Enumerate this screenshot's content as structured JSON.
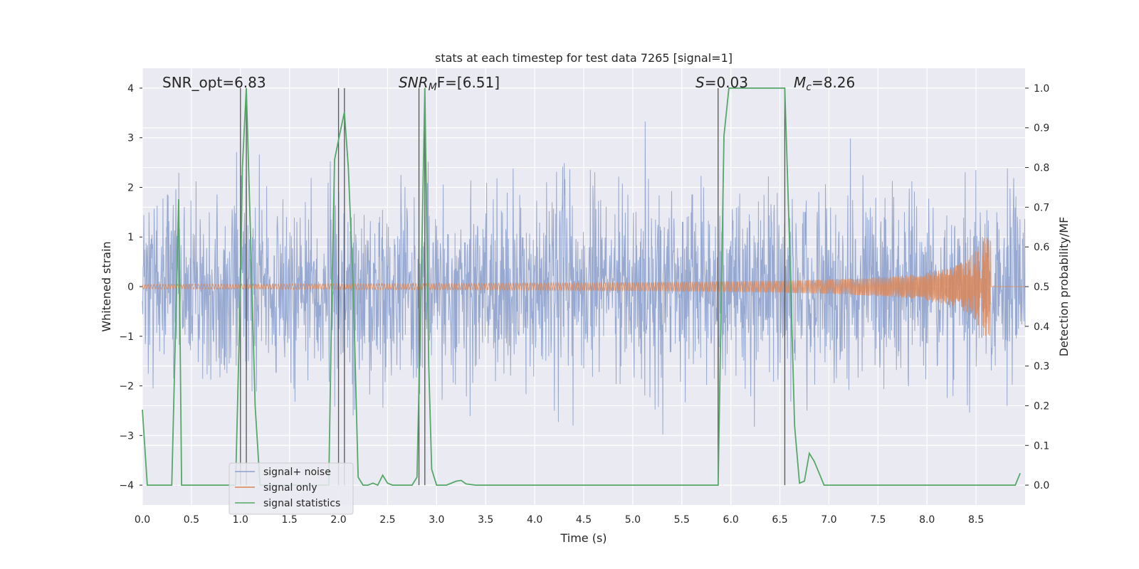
{
  "chart_data": {
    "type": "line",
    "title": "stats at each timestep for test data 7265 [signal=1]",
    "xlabel": "Time (s)",
    "ylabel_left": "Whitened strain",
    "ylabel_right": "Detection probability/MF",
    "xlim": [
      0.0,
      9.0
    ],
    "ylim_left": [
      -4.4,
      4.4
    ],
    "ylim_right": [
      -0.05,
      1.05
    ],
    "x_ticks": [
      "0.0",
      "0.5",
      "1.0",
      "1.5",
      "2.0",
      "2.5",
      "3.0",
      "3.5",
      "4.0",
      "4.5",
      "5.0",
      "5.5",
      "6.0",
      "6.5",
      "7.0",
      "7.5",
      "8.0",
      "8.5"
    ],
    "y_left_ticks": [
      "4",
      "3",
      "2",
      "1",
      "0",
      "−1",
      "−2",
      "−3",
      "−4"
    ],
    "y_right_ticks": [
      "1.0",
      "0.9",
      "0.8",
      "0.7",
      "0.6",
      "0.5",
      "0.4",
      "0.3",
      "0.2",
      "0.1",
      "0.0"
    ],
    "grid": true,
    "legend_position": "lower-left",
    "annotations": {
      "snr_opt": "SNR_opt=6.83",
      "snr_mf_label": "SNR",
      "snr_mf_sub": "M",
      "snr_mf_tail": "F=[6.51]",
      "s_label": "S",
      "s_value": "=0.03",
      "mc_label": "M",
      "mc_sub": "c",
      "mc_value": "=8.26"
    },
    "series": [
      {
        "name": "signal+ noise",
        "color": "#8ea2cc",
        "envelope": {
          "typical_abs": 1.6,
          "peak_max": 4.0,
          "peak_min": -3.9
        }
      },
      {
        "name": "signal only",
        "color": "#dd8452",
        "chirp": {
          "end_time": 8.65,
          "peak_amplitude": 1.0,
          "base_amplitude": 0.05
        }
      },
      {
        "name": "signal statistics",
        "color": "#55a868",
        "axis": "right",
        "x": [
          0.0,
          0.05,
          0.1,
          0.2,
          0.3,
          0.37,
          0.4,
          0.45,
          0.5,
          0.9,
          0.95,
          1.0,
          1.02,
          1.06,
          1.1,
          1.15,
          1.2,
          1.9,
          1.93,
          1.96,
          2.0,
          2.06,
          2.1,
          2.15,
          2.2,
          2.25,
          2.3,
          2.35,
          2.4,
          2.45,
          2.5,
          2.55,
          2.6,
          2.75,
          2.8,
          2.85,
          2.88,
          2.92,
          2.95,
          3.0,
          3.1,
          3.2,
          3.25,
          3.3,
          3.4,
          3.6,
          4.0,
          5.0,
          5.87,
          5.93,
          5.98,
          6.0,
          6.5,
          6.55,
          6.6,
          6.65,
          6.7,
          6.75,
          6.8,
          6.85,
          6.9,
          6.95,
          7.0,
          7.5,
          8.0,
          8.5,
          8.9,
          8.95
        ],
        "y": [
          0.19,
          0.0,
          0.0,
          0.0,
          0.0,
          0.72,
          0.0,
          0.0,
          0.0,
          0.0,
          0.0,
          0.5,
          0.8,
          1.0,
          0.65,
          0.2,
          0.0,
          0.0,
          0.45,
          0.82,
          0.87,
          0.94,
          0.8,
          0.5,
          0.02,
          0.0,
          0.0,
          0.005,
          0.0,
          0.025,
          0.005,
          0.0,
          0.0,
          0.0,
          0.02,
          0.6,
          1.0,
          0.3,
          0.04,
          0.0,
          0.0,
          0.01,
          0.012,
          0.003,
          0.0,
          0.0,
          0.0,
          0.0,
          0.0,
          0.88,
          1.0,
          1.0,
          1.0,
          1.0,
          0.6,
          0.15,
          0.005,
          0.01,
          0.08,
          0.06,
          0.03,
          0.0,
          0.0,
          0.0,
          0.0,
          0.0,
          0.0,
          0.03
        ]
      }
    ],
    "vertical_markers": [
      1.0,
      1.06,
      2.0,
      2.06,
      2.82,
      2.88,
      5.87,
      6.55
    ]
  }
}
